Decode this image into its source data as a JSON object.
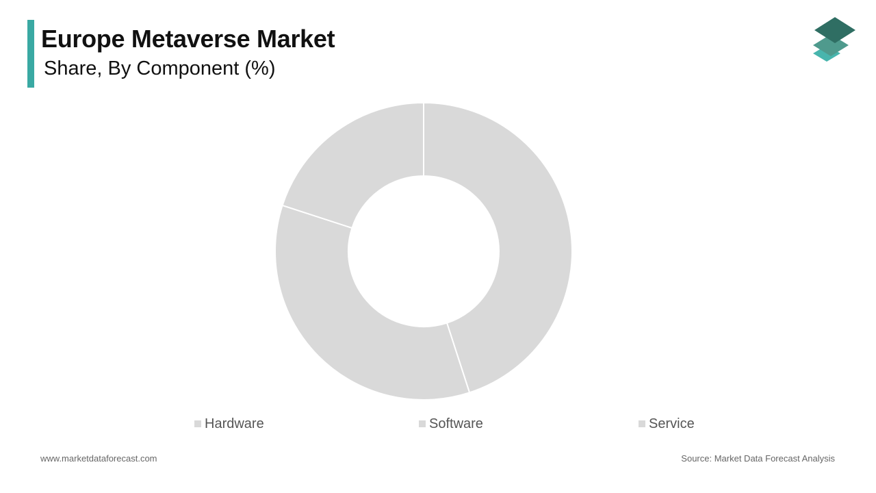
{
  "header": {
    "title": "Europe Metaverse Market",
    "subtitle": "Share, By Component (%)",
    "accent_color": "#3aa9a3"
  },
  "logo": {
    "icon": "stacked-layers-logo",
    "colors": [
      "#2f6e63",
      "#4f9a8d",
      "#48b5ad"
    ]
  },
  "chart_data": {
    "type": "pie",
    "variant": "donut",
    "title": "Europe Metaverse Market",
    "subtitle": "Share, By Component (%)",
    "categories": [
      "Hardware",
      "Software",
      "Service"
    ],
    "values": [
      45,
      35,
      20
    ],
    "colors": [
      "#d9d9d9",
      "#d9d9d9",
      "#d9d9d9"
    ],
    "legend_position": "bottom",
    "data_labels": false
  },
  "footer": {
    "website": "www.marketdataforecast.com",
    "source": "Source: Market Data Forecast Analysis"
  }
}
